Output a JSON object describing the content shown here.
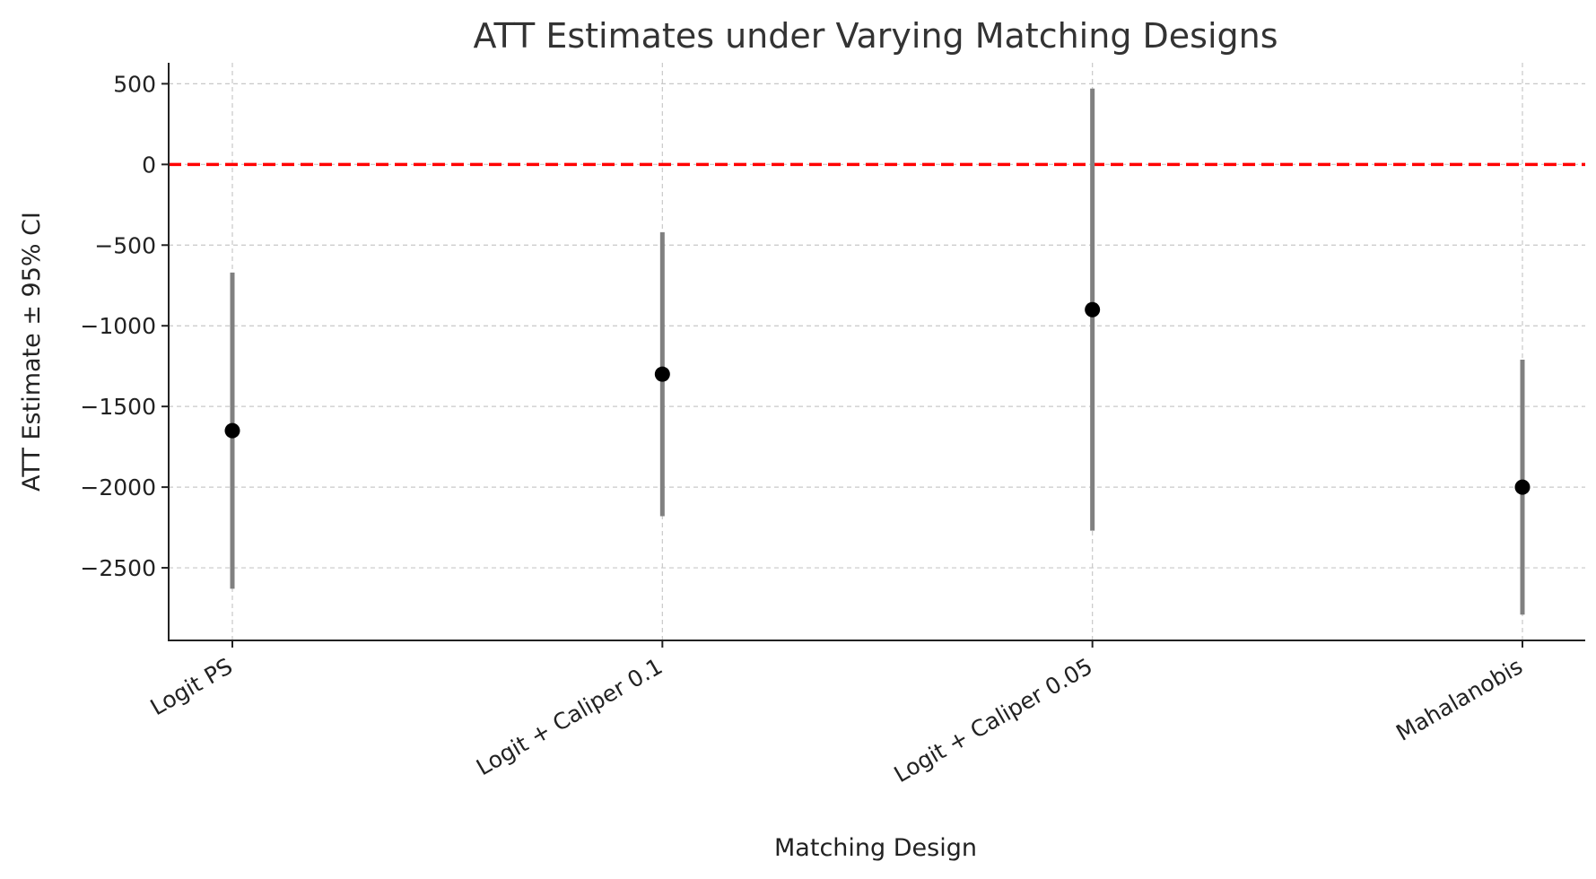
{
  "chart_data": {
    "type": "scatter",
    "title": "ATT Estimates under Varying Matching Designs",
    "xlabel": "Matching Design",
    "ylabel": "ATT Estimate ± 95% CI",
    "categories": [
      "Logit PS",
      "Logit + Caliper 0.1",
      "Logit + Caliper 0.05",
      "Mahalanobis"
    ],
    "series": [
      {
        "values": [
          -1650,
          -1300,
          -900,
          -2000
        ],
        "ci_lower": [
          -2630,
          -2180,
          -2270,
          -2790
        ],
        "ci_upper": [
          -670,
          -420,
          470,
          -1210
        ]
      }
    ],
    "reference_line": {
      "y": 0,
      "color": "#ff0000",
      "style": "dashed"
    },
    "yticks": [
      500,
      0,
      -500,
      -1000,
      -1500,
      -2000,
      -2500
    ],
    "ytick_labels": [
      "500",
      "0",
      "−500",
      "−1000",
      "−1500",
      "−2000",
      "−2500"
    ],
    "ylim": [
      -2950,
      630
    ],
    "grid": true,
    "colors": {
      "point": "#000000",
      "errorbar": "#808080",
      "reference": "#ff0000"
    }
  }
}
